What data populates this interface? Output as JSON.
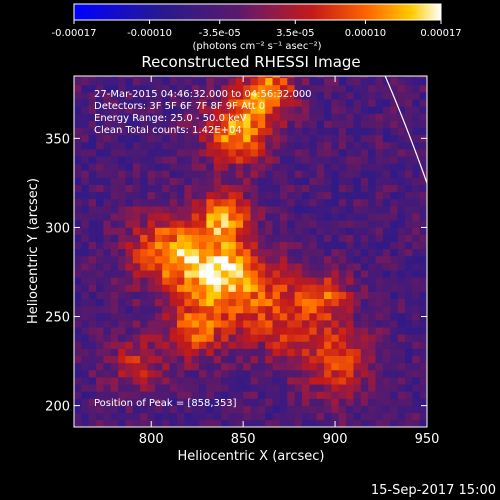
{
  "chart_data": {
    "type": "heatmap",
    "title": "Reconstructed RHESSI Image",
    "xlabel": "Heliocentric X (arcsec)",
    "ylabel": "Heliocentric Y (arcsec)",
    "xlim": [
      758,
      950
    ],
    "ylim": [
      188,
      385
    ],
    "x_ticks": [
      "800",
      "850",
      "900",
      "950"
    ],
    "y_ticks": [
      "200",
      "250",
      "300",
      "350"
    ],
    "x_tick_values": [
      800,
      850,
      900,
      950
    ],
    "y_tick_values": [
      200,
      250,
      300,
      350
    ],
    "colorbar": {
      "range": [
        -0.00017,
        0.00017
      ],
      "tick_labels": [
        "-0.00017",
        "-0.00010",
        "-3.5e-05",
        "3.5e-05",
        "0.00010",
        "0.00017"
      ],
      "tick_values": [
        -0.00017,
        -0.0001,
        -3.5e-05,
        3.5e-05,
        0.0001,
        0.00017
      ],
      "units": "(photons cm⁻² s⁻¹ asec⁻²)"
    },
    "peak_position": [
      858,
      353
    ],
    "sources": [
      {
        "x": 835,
        "y": 272,
        "amp": 1.0,
        "sigma": 16
      },
      {
        "x": 805,
        "y": 285,
        "amp": 0.75,
        "sigma": 14
      },
      {
        "x": 845,
        "y": 352,
        "amp": 0.9,
        "sigma": 13
      },
      {
        "x": 862,
        "y": 375,
        "amp": 0.85,
        "sigma": 10
      },
      {
        "x": 838,
        "y": 305,
        "amp": 0.8,
        "sigma": 10
      },
      {
        "x": 870,
        "y": 250,
        "amp": 0.6,
        "sigma": 18
      },
      {
        "x": 900,
        "y": 222,
        "amp": 0.55,
        "sigma": 14
      },
      {
        "x": 790,
        "y": 222,
        "amp": 0.45,
        "sigma": 11
      },
      {
        "x": 822,
        "y": 240,
        "amp": 0.6,
        "sigma": 12
      },
      {
        "x": 895,
        "y": 260,
        "amp": 0.45,
        "sigma": 9
      }
    ],
    "limb_color": "#ffffff"
  },
  "header_text": [
    "27-Mar-2015 04:46:32.000 to 04:56:32.000",
    "Detectors: 3F 5F 6F 7F 8F 9F  Att 0",
    "Energy Range: 25.0 - 50.0 keV",
    "Clean      Total counts: 1.42E+04"
  ],
  "peak_text": "Position of Peak = [858,353]",
  "date_stamp": "15-Sep-2017 15:00"
}
